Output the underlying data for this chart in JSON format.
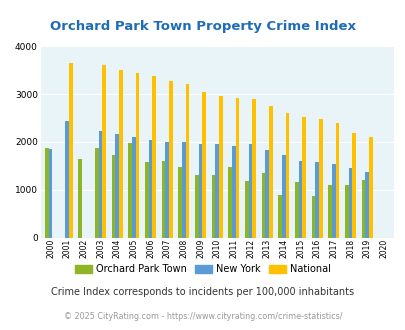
{
  "title": "Orchard Park Town Property Crime Index",
  "subtitle": "Crime Index corresponds to incidents per 100,000 inhabitants",
  "footer": "© 2025 CityRating.com - https://www.cityrating.com/crime-statistics/",
  "years": [
    2000,
    2001,
    2002,
    2003,
    2004,
    2005,
    2006,
    2007,
    2008,
    2009,
    2010,
    2011,
    2012,
    2013,
    2014,
    2015,
    2016,
    2017,
    2018,
    2019,
    2020
  ],
  "orchard_park": [
    1880,
    0,
    1640,
    1870,
    1720,
    1980,
    1570,
    1600,
    1470,
    1310,
    1310,
    1480,
    1190,
    1350,
    880,
    1160,
    870,
    1100,
    1100,
    1200,
    0
  ],
  "new_york": [
    1860,
    2430,
    0,
    2230,
    2170,
    2110,
    2050,
    2000,
    2000,
    1960,
    1960,
    1920,
    1960,
    1840,
    1730,
    1600,
    1570,
    1540,
    1450,
    1370,
    0
  ],
  "national": [
    0,
    3650,
    0,
    3600,
    3510,
    3440,
    3370,
    3270,
    3220,
    3050,
    2960,
    2920,
    2890,
    2750,
    2610,
    2510,
    2470,
    2390,
    2190,
    2110,
    0
  ],
  "orchard_color": "#8db526",
  "newyork_color": "#5b9bd5",
  "national_color": "#ffc000",
  "bg_color": "#e8f4f8",
  "title_color": "#1f6db5",
  "subtitle_color": "#333333",
  "footer_color": "#999999",
  "ylim": [
    0,
    4000
  ],
  "yticks": [
    0,
    1000,
    2000,
    3000,
    4000
  ]
}
